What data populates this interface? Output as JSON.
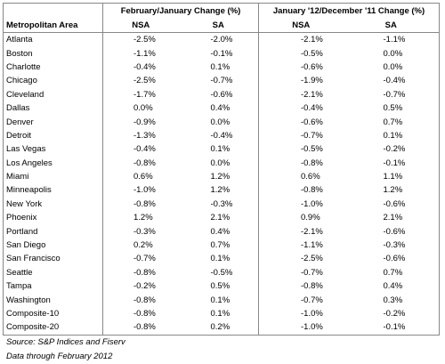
{
  "table": {
    "group_headers": [
      "February/January Change (%)",
      "January '12/December '11 Change (%)"
    ],
    "columns": [
      "Metropolitan Area",
      "NSA",
      "SA",
      "NSA",
      "SA"
    ],
    "rows": [
      [
        "Atlanta",
        "-2.5%",
        "-2.0%",
        "-2.1%",
        "-1.1%"
      ],
      [
        "Boston",
        "-1.1%",
        "-0.1%",
        "-0.5%",
        "0.0%"
      ],
      [
        "Charlotte",
        "-0.4%",
        "0.1%",
        "-0.6%",
        "0.0%"
      ],
      [
        "Chicago",
        "-2.5%",
        "-0.7%",
        "-1.9%",
        "-0.4%"
      ],
      [
        "Cleveland",
        "-1.7%",
        "-0.6%",
        "-2.1%",
        "-0.7%"
      ],
      [
        "Dallas",
        "0.0%",
        "0.4%",
        "-0.4%",
        "0.5%"
      ],
      [
        "Denver",
        "-0.9%",
        "0.0%",
        "-0.6%",
        "0.7%"
      ],
      [
        "Detroit",
        "-1.3%",
        "-0.4%",
        "-0.7%",
        "0.1%"
      ],
      [
        "Las Vegas",
        "-0.4%",
        "0.1%",
        "-0.5%",
        "-0.2%"
      ],
      [
        "Los Angeles",
        "-0.8%",
        "0.0%",
        "-0.8%",
        "-0.1%"
      ],
      [
        "Miami",
        "0.6%",
        "1.2%",
        "0.6%",
        "1.1%"
      ],
      [
        "Minneapolis",
        "-1.0%",
        "1.2%",
        "-0.8%",
        "1.2%"
      ],
      [
        "New York",
        "-0.8%",
        "-0.3%",
        "-1.0%",
        "-0.6%"
      ],
      [
        "Phoenix",
        "1.2%",
        "2.1%",
        "0.9%",
        "2.1%"
      ],
      [
        "Portland",
        "-0.3%",
        "0.4%",
        "-2.1%",
        "-0.6%"
      ],
      [
        "San Diego",
        "0.2%",
        "0.7%",
        "-1.1%",
        "-0.3%"
      ],
      [
        "San Francisco",
        "-0.7%",
        "0.1%",
        "-2.5%",
        "-0.6%"
      ],
      [
        "Seattle",
        "-0.8%",
        "-0.5%",
        "-0.7%",
        "0.7%"
      ],
      [
        "Tampa",
        "-0.2%",
        "0.5%",
        "-0.8%",
        "0.4%"
      ],
      [
        "Washington",
        "-0.8%",
        "0.1%",
        "-0.7%",
        "0.3%"
      ],
      [
        "Composite-10",
        "-0.8%",
        "0.1%",
        "-1.0%",
        "-0.2%"
      ],
      [
        "Composite-20",
        "-0.8%",
        "0.2%",
        "-1.0%",
        "-0.1%"
      ]
    ]
  },
  "footnotes": [
    "Source: S&P Indices and Fiserv",
    "Data through February 2012"
  ]
}
